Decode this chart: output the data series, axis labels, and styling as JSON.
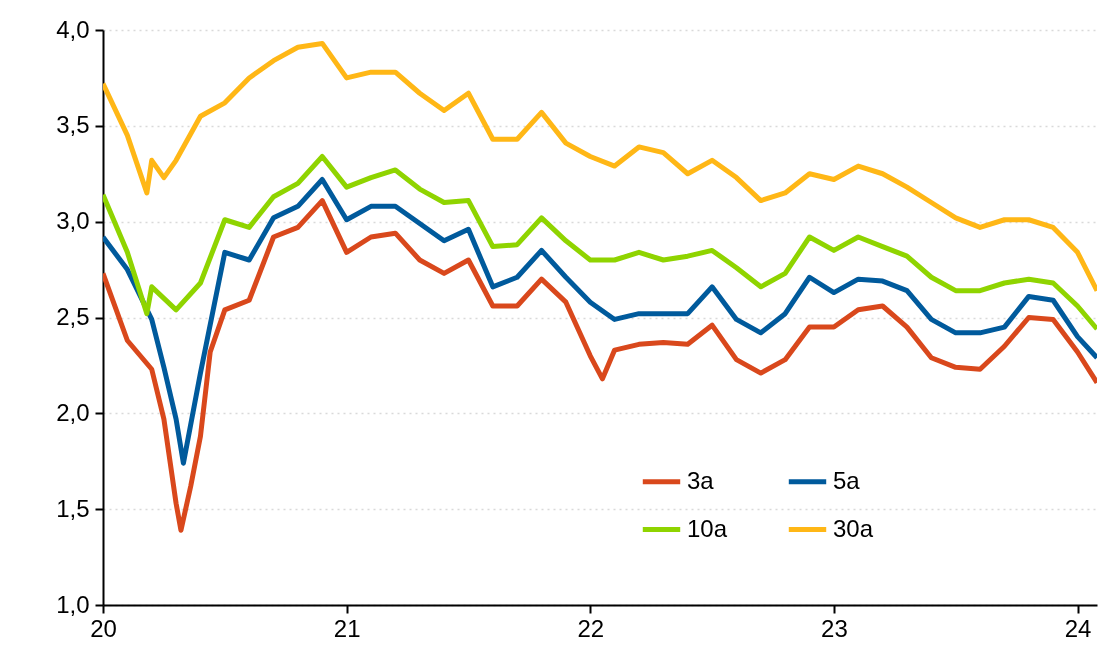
{
  "chart_data": {
    "type": "line",
    "xlim": [
      20,
      24.08
    ],
    "xticks": [
      20,
      21,
      22,
      23,
      24
    ],
    "ylim": [
      1,
      4
    ],
    "yticks": [
      {
        "value": 1,
        "label": "1,0"
      },
      {
        "value": 1.5,
        "label": "1,5"
      },
      {
        "value": 2,
        "label": "2,0"
      },
      {
        "value": 2.5,
        "label": "2,5"
      },
      {
        "value": 3,
        "label": "3,0"
      },
      {
        "value": 3.5,
        "label": "3,5"
      },
      {
        "value": 4,
        "label": "4,0"
      }
    ],
    "grid": "y",
    "legend": "bottom right",
    "line_style": "solid",
    "marker": "none",
    "series": [
      {
        "name": "3a",
        "color": "#d9481c",
        "x": [
          20,
          20.1,
          20.2,
          20.25,
          20.3,
          20.32,
          20.36,
          20.4,
          20.44,
          20.5,
          20.6,
          20.7,
          20.8,
          20.9,
          21,
          21.1,
          21.2,
          21.3,
          21.4,
          21.5,
          21.6,
          21.7,
          21.8,
          21.9,
          22,
          22.05,
          22.1,
          22.2,
          22.3,
          22.4,
          22.5,
          22.6,
          22.7,
          22.8,
          22.9,
          23,
          23.1,
          23.2,
          23.3,
          23.4,
          23.5,
          23.6,
          23.7,
          23.8,
          23.9,
          24,
          24.08
        ],
        "values": [
          2.73,
          2.38,
          2.23,
          1.97,
          1.53,
          1.39,
          1.62,
          1.88,
          2.32,
          2.54,
          2.59,
          2.92,
          2.97,
          3.11,
          2.84,
          2.92,
          2.94,
          2.8,
          2.73,
          2.8,
          2.56,
          2.56,
          2.7,
          2.58,
          2.3,
          2.18,
          2.33,
          2.36,
          2.37,
          2.36,
          2.46,
          2.28,
          2.21,
          2.28,
          2.45,
          2.45,
          2.54,
          2.56,
          2.45,
          2.29,
          2.24,
          2.23,
          2.35,
          2.5,
          2.49,
          2.32,
          2.16
        ]
      },
      {
        "name": "5a",
        "color": "#005a9c",
        "x": [
          20,
          20.1,
          20.2,
          20.25,
          20.3,
          20.33,
          20.4,
          20.5,
          20.6,
          20.7,
          20.8,
          20.9,
          21,
          21.1,
          21.2,
          21.3,
          21.4,
          21.5,
          21.6,
          21.7,
          21.8,
          21.9,
          22,
          22.1,
          22.2,
          22.3,
          22.4,
          22.5,
          22.6,
          22.7,
          22.8,
          22.9,
          23,
          23.1,
          23.2,
          23.3,
          23.4,
          23.5,
          23.6,
          23.7,
          23.8,
          23.9,
          24,
          24.08
        ],
        "values": [
          2.92,
          2.75,
          2.49,
          2.24,
          1.97,
          1.74,
          2.21,
          2.84,
          2.8,
          3.02,
          3.08,
          3.22,
          3.01,
          3.08,
          3.08,
          2.99,
          2.9,
          2.96,
          2.66,
          2.71,
          2.85,
          2.71,
          2.58,
          2.49,
          2.52,
          2.52,
          2.52,
          2.66,
          2.49,
          2.42,
          2.52,
          2.71,
          2.63,
          2.7,
          2.69,
          2.64,
          2.49,
          2.42,
          2.42,
          2.45,
          2.61,
          2.59,
          2.4,
          2.29
        ]
      },
      {
        "name": "10a",
        "color": "#8fd400",
        "x": [
          20,
          20.1,
          20.18,
          20.2,
          20.3,
          20.4,
          20.5,
          20.6,
          20.7,
          20.8,
          20.9,
          21,
          21.1,
          21.2,
          21.3,
          21.4,
          21.5,
          21.6,
          21.7,
          21.8,
          21.9,
          22,
          22.1,
          22.2,
          22.3,
          22.4,
          22.5,
          22.6,
          22.7,
          22.8,
          22.9,
          23,
          23.1,
          23.2,
          23.3,
          23.4,
          23.5,
          23.6,
          23.7,
          23.8,
          23.9,
          24,
          24.08
        ],
        "values": [
          3.14,
          2.84,
          2.52,
          2.66,
          2.54,
          2.68,
          3.01,
          2.97,
          3.13,
          3.2,
          3.34,
          3.18,
          3.23,
          3.27,
          3.17,
          3.1,
          3.11,
          2.87,
          2.88,
          3.02,
          2.9,
          2.8,
          2.8,
          2.84,
          2.8,
          2.82,
          2.85,
          2.76,
          2.66,
          2.73,
          2.92,
          2.85,
          2.92,
          2.87,
          2.82,
          2.71,
          2.64,
          2.64,
          2.68,
          2.7,
          2.68,
          2.56,
          2.44
        ]
      },
      {
        "name": "30a",
        "color": "#ffb716",
        "x": [
          20,
          20.1,
          20.18,
          20.2,
          20.25,
          20.3,
          20.4,
          20.5,
          20.6,
          20.7,
          20.8,
          20.9,
          21,
          21.1,
          21.2,
          21.3,
          21.4,
          21.5,
          21.6,
          21.7,
          21.8,
          21.9,
          22,
          22.1,
          22.2,
          22.3,
          22.4,
          22.5,
          22.6,
          22.7,
          22.8,
          22.9,
          23,
          23.1,
          23.2,
          23.3,
          23.4,
          23.5,
          23.6,
          23.7,
          23.8,
          23.9,
          24,
          24.08
        ],
        "values": [
          3.72,
          3.45,
          3.15,
          3.32,
          3.23,
          3.32,
          3.55,
          3.62,
          3.75,
          3.84,
          3.91,
          3.93,
          3.75,
          3.78,
          3.78,
          3.67,
          3.58,
          3.67,
          3.43,
          3.43,
          3.57,
          3.41,
          3.34,
          3.29,
          3.39,
          3.36,
          3.25,
          3.32,
          3.23,
          3.11,
          3.15,
          3.25,
          3.22,
          3.29,
          3.25,
          3.18,
          3.1,
          3.02,
          2.97,
          3.01,
          3.01,
          2.97,
          2.84,
          2.64
        ]
      }
    ]
  }
}
